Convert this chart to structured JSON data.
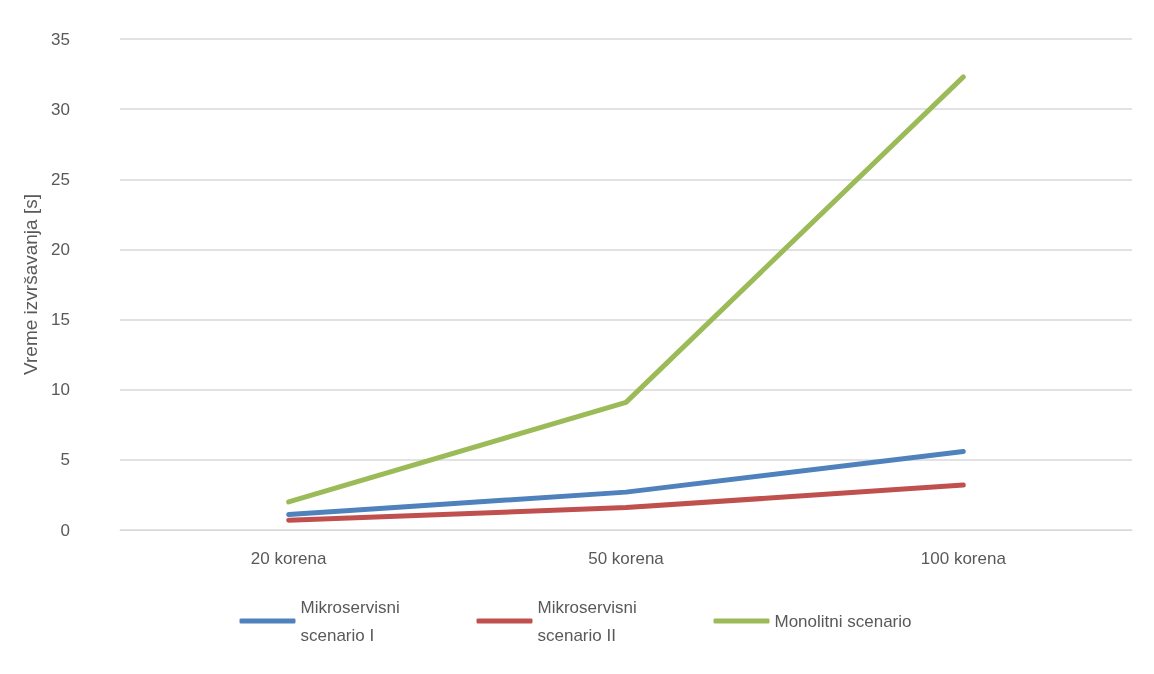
{
  "chart_data": {
    "type": "line",
    "ylabel": "Vreme izvršavanja [s]",
    "categories": [
      "20 korena",
      "50 korena",
      "100 korena"
    ],
    "series": [
      {
        "name": "Mikroservisni scenario I",
        "color": "#4f81bd",
        "values": [
          1.1,
          2.7,
          5.6
        ]
      },
      {
        "name": "Mikroservisni scenario II",
        "color": "#c0504d",
        "values": [
          0.7,
          1.6,
          3.2
        ]
      },
      {
        "name": "Monolitni scenario",
        "color": "#9bbb59",
        "values": [
          2.0,
          9.1,
          32.3
        ]
      }
    ],
    "ylim": [
      0,
      35
    ],
    "yticks": [
      0,
      5,
      10,
      15,
      20,
      25,
      30,
      35
    ],
    "grid": "y",
    "legend": "bottom",
    "marker": "none",
    "line_style": "solid"
  }
}
